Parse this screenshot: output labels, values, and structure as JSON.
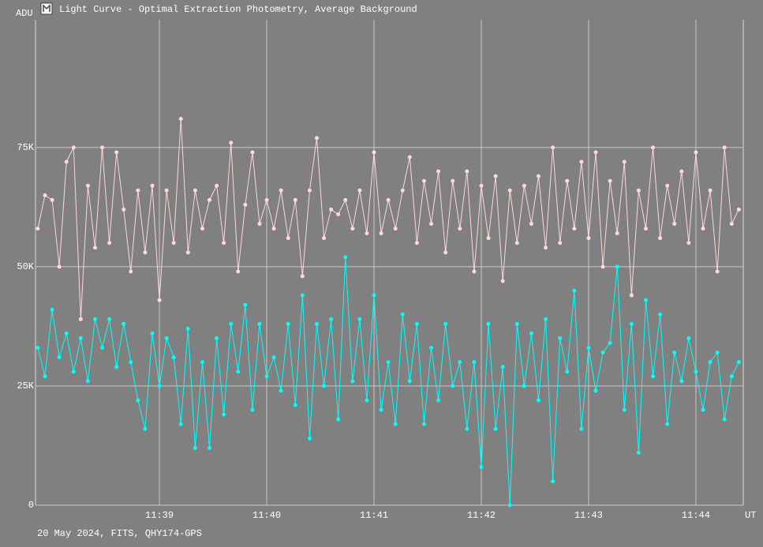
{
  "chart_data": {
    "type": "line",
    "title": "Light Curve - Optimal Extraction Photometry, Average Background",
    "y_label": "ADU",
    "x_label": "UT",
    "footer": "20 May 2024, FITS, QHY174-GPS",
    "grid": true,
    "xlim": [
      41870.7,
      42266.5
    ],
    "xticks": [
      {
        "value": 41940,
        "label": "11:39"
      },
      {
        "value": 42000,
        "label": "11:40"
      },
      {
        "value": 42060,
        "label": "11:41"
      },
      {
        "value": 42120,
        "label": "11:42"
      },
      {
        "value": 42180,
        "label": "11:43"
      },
      {
        "value": 42240,
        "label": "11:44"
      }
    ],
    "ylim": [
      0,
      101800
    ],
    "yticks": [
      0,
      {
        "value": 25000,
        "label": "25K"
      },
      {
        "value": 50000,
        "label": "50K"
      },
      {
        "value": 75000,
        "label": "75K"
      }
    ],
    "x": [
      41872,
      41876,
      41880,
      41884,
      41888,
      41892,
      41896,
      41900,
      41904,
      41908,
      41912,
      41916,
      41920,
      41924,
      41928,
      41932,
      41936,
      41940,
      41944,
      41948,
      41952,
      41956,
      41960,
      41964,
      41968,
      41972,
      41976,
      41980,
      41984,
      41988,
      41992,
      41996,
      42000,
      42004,
      42008,
      42012,
      42016,
      42020,
      42024,
      42028,
      42032,
      42036,
      42040,
      42044,
      42048,
      42052,
      42056,
      42060,
      42064,
      42068,
      42072,
      42076,
      42080,
      42084,
      42088,
      42092,
      42096,
      42100,
      42104,
      42108,
      42112,
      42116,
      42120,
      42124,
      42128,
      42132,
      42136,
      42140,
      42144,
      42148,
      42152,
      42156,
      42160,
      42164,
      42168,
      42172,
      42176,
      42180,
      42184,
      42188,
      42192,
      42196,
      42200,
      42204,
      42208,
      42212,
      42216,
      42220,
      42224,
      42228,
      42232,
      42236,
      42240,
      42244,
      42248,
      42252,
      42256,
      42260,
      42264
    ],
    "series": [
      {
        "color": "#ffd8d8",
        "values": [
          58000,
          65000,
          64000,
          50000,
          72000,
          75000,
          39000,
          67000,
          54000,
          75000,
          55000,
          74000,
          62000,
          49000,
          66000,
          53000,
          67000,
          43000,
          66000,
          55000,
          81000,
          53000,
          66000,
          58000,
          64000,
          67000,
          55000,
          76000,
          49000,
          63000,
          74000,
          59000,
          64000,
          58000,
          66000,
          56000,
          64000,
          48000,
          66000,
          77000,
          56000,
          62000,
          61000,
          64000,
          58000,
          66000,
          57000,
          74000,
          57000,
          64000,
          58000,
          66000,
          73000,
          55000,
          68000,
          59000,
          70000,
          53000,
          68000,
          58000,
          70000,
          49000,
          67000,
          56000,
          69000,
          47000,
          66000,
          55000,
          67000,
          59000,
          69000,
          54000,
          75000,
          55000,
          68000,
          58000,
          72000,
          56000,
          74000,
          50000,
          68000,
          57000,
          72000,
          44000,
          66000,
          58000,
          75000,
          56000,
          67000,
          59000,
          70000,
          55000,
          74000,
          58000,
          66000,
          49000,
          75000,
          59000,
          62000
        ]
      },
      {
        "color": "#00ffff",
        "values": [
          33000,
          27000,
          41000,
          31000,
          36000,
          28000,
          35000,
          26000,
          39000,
          33000,
          39000,
          29000,
          38000,
          30000,
          22000,
          16000,
          36000,
          25000,
          35000,
          31000,
          17000,
          37000,
          12000,
          30000,
          12000,
          35000,
          19000,
          38000,
          28000,
          42000,
          20000,
          38000,
          27000,
          31000,
          24000,
          38000,
          21000,
          44000,
          14000,
          38000,
          25000,
          39000,
          18000,
          52000,
          26000,
          39000,
          22000,
          44000,
          20000,
          30000,
          17000,
          40000,
          26000,
          38000,
          17000,
          33000,
          22000,
          38000,
          25000,
          30000,
          16000,
          30000,
          8000,
          38000,
          16000,
          29000,
          0,
          38000,
          25000,
          36000,
          22000,
          39000,
          5000,
          35000,
          28000,
          45000,
          16000,
          33000,
          24000,
          32000,
          34000,
          50000,
          20000,
          38000,
          11000,
          43000,
          27000,
          40000,
          17000,
          32000,
          26000,
          35000,
          28000,
          20000,
          30000,
          32000,
          18000,
          27000,
          30000
        ]
      }
    ]
  }
}
